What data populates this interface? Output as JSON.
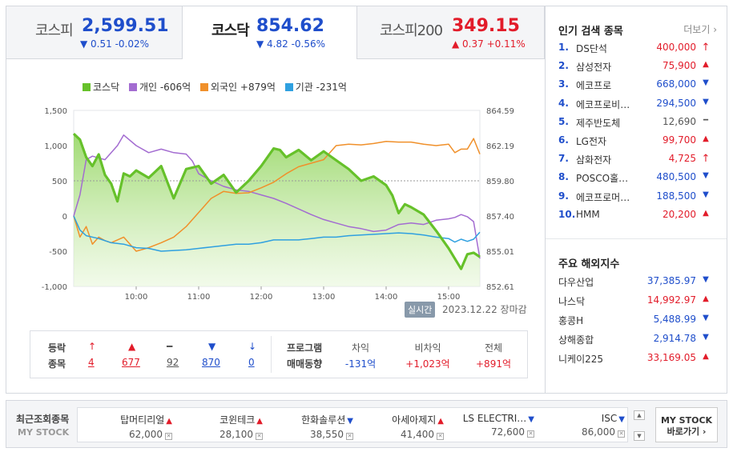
{
  "tabs": [
    {
      "name": "코스피",
      "value": "2,599.51",
      "change": "▼ 0.51 -0.02%",
      "dir": "down"
    },
    {
      "name": "코스닥",
      "value": "854.62",
      "change": "▼ 4.82 -0.56%",
      "dir": "down"
    },
    {
      "name": "코스피200",
      "value": "349.15",
      "change": "▲ 0.37 +0.11%",
      "dir": "up"
    }
  ],
  "legend": [
    {
      "label": "코스닥",
      "color": "#66c12a"
    },
    {
      "label": "개인 -606억",
      "color": "#a36cd1"
    },
    {
      "label": "외국인 +879억",
      "color": "#f0902a"
    },
    {
      "label": "기관 -231억",
      "color": "#2fa0e0"
    }
  ],
  "chart_data": {
    "type": "line",
    "x_ticks": [
      "10:00",
      "11:00",
      "12:00",
      "13:00",
      "14:00",
      "15:00"
    ],
    "y_left_ticks": [
      "1,500",
      "1,000",
      "500",
      "0",
      "-500",
      "-1,000"
    ],
    "y_left_range": [
      -1000,
      1500
    ],
    "y_right_ticks": [
      "864.59",
      "862.19",
      "859.80",
      "857.40",
      "855.01",
      "852.61"
    ],
    "y_right_range": [
      852.61,
      864.59
    ],
    "reference_line": 859.8,
    "x_range": [
      9.0,
      15.5
    ],
    "series": [
      {
        "name": "코스닥",
        "color": "#66c12a",
        "axis": "right",
        "area": true,
        "x": [
          9.0,
          9.1,
          9.2,
          9.3,
          9.4,
          9.5,
          9.6,
          9.7,
          9.8,
          9.9,
          10.0,
          10.2,
          10.4,
          10.6,
          10.8,
          11.0,
          11.2,
          11.4,
          11.6,
          11.8,
          12.0,
          12.2,
          12.3,
          12.4,
          12.6,
          12.8,
          13.0,
          13.2,
          13.4,
          13.6,
          13.8,
          14.0,
          14.1,
          14.2,
          14.3,
          14.4,
          14.6,
          14.8,
          15.0,
          15.2,
          15.3,
          15.4,
          15.5
        ],
        "values": [
          863.0,
          862.6,
          861.4,
          860.8,
          861.6,
          860.2,
          859.6,
          858.4,
          860.3,
          860.1,
          860.5,
          860.0,
          860.8,
          858.6,
          860.6,
          860.8,
          859.6,
          860.2,
          859.0,
          859.8,
          860.8,
          862.0,
          861.9,
          861.4,
          861.9,
          861.2,
          861.8,
          861.2,
          860.6,
          859.8,
          860.1,
          859.5,
          858.8,
          857.6,
          858.2,
          858.0,
          857.5,
          856.4,
          855.2,
          853.8,
          854.8,
          854.9,
          854.62
        ]
      },
      {
        "name": "개인 -606억",
        "color": "#a36cd1",
        "axis": "left",
        "x": [
          9.0,
          9.1,
          9.2,
          9.3,
          9.5,
          9.7,
          9.8,
          10.0,
          10.2,
          10.4,
          10.6,
          10.8,
          10.9,
          11.0,
          11.2,
          11.4,
          11.6,
          11.8,
          12.0,
          12.2,
          12.4,
          12.6,
          12.8,
          13.0,
          13.2,
          13.4,
          13.6,
          13.8,
          14.0,
          14.2,
          14.4,
          14.6,
          14.8,
          15.0,
          15.1,
          15.2,
          15.3,
          15.4,
          15.5
        ],
        "values": [
          0,
          300,
          800,
          850,
          800,
          1000,
          1150,
          1000,
          900,
          950,
          900,
          880,
          780,
          600,
          500,
          420,
          370,
          350,
          300,
          250,
          180,
          100,
          20,
          -50,
          -100,
          -150,
          -180,
          -220,
          -200,
          -120,
          -100,
          -120,
          -60,
          -40,
          -20,
          20,
          -10,
          -80,
          -606
        ]
      },
      {
        "name": "외국인 +879억",
        "color": "#f0902a",
        "axis": "left",
        "x": [
          9.0,
          9.1,
          9.2,
          9.3,
          9.4,
          9.5,
          9.6,
          9.8,
          10.0,
          10.2,
          10.4,
          10.6,
          10.8,
          11.0,
          11.2,
          11.4,
          11.6,
          11.8,
          12.0,
          12.2,
          12.4,
          12.6,
          12.8,
          13.0,
          13.2,
          13.4,
          13.6,
          13.8,
          14.0,
          14.2,
          14.4,
          14.6,
          14.8,
          15.0,
          15.1,
          15.2,
          15.3,
          15.4,
          15.5
        ],
        "values": [
          0,
          -300,
          -150,
          -400,
          -300,
          -350,
          -380,
          -300,
          -500,
          -450,
          -380,
          -300,
          -150,
          50,
          250,
          350,
          320,
          330,
          400,
          480,
          600,
          700,
          750,
          800,
          1000,
          1020,
          1010,
          1030,
          1060,
          1050,
          1050,
          1020,
          1000,
          1020,
          900,
          950,
          950,
          1100,
          879
        ]
      },
      {
        "name": "기관 -231억",
        "color": "#2fa0e0",
        "axis": "left",
        "x": [
          9.0,
          9.1,
          9.2,
          9.4,
          9.6,
          9.8,
          10.0,
          10.2,
          10.4,
          10.6,
          10.8,
          11.0,
          11.2,
          11.4,
          11.6,
          11.8,
          12.0,
          12.2,
          12.4,
          12.6,
          12.8,
          13.0,
          13.2,
          13.4,
          13.6,
          13.8,
          14.0,
          14.2,
          14.4,
          14.6,
          14.8,
          15.0,
          15.1,
          15.2,
          15.3,
          15.4,
          15.5
        ],
        "values": [
          0,
          -200,
          -280,
          -320,
          -380,
          -400,
          -450,
          -460,
          -500,
          -490,
          -480,
          -460,
          -440,
          -420,
          -400,
          -400,
          -380,
          -340,
          -340,
          -340,
          -320,
          -300,
          -300,
          -280,
          -270,
          -260,
          -250,
          -240,
          -250,
          -270,
          -300,
          -320,
          -370,
          -330,
          -360,
          -330,
          -231
        ]
      }
    ]
  },
  "status": {
    "live": "실시간",
    "date": "2023.12.22",
    "market": "장마감"
  },
  "breadth": {
    "label1": "등락",
    "label2": "종목",
    "items": [
      {
        "sym": "↑",
        "count": "4",
        "dir": "up"
      },
      {
        "sym": "▲",
        "count": "677",
        "dir": "up"
      },
      {
        "sym": "━",
        "count": "92",
        "dir": "flat"
      },
      {
        "sym": "▼",
        "count": "870",
        "dir": "down"
      },
      {
        "sym": "↓",
        "count": "0",
        "dir": "down"
      }
    ]
  },
  "program": {
    "label1": "프로그램",
    "label2": "매매동향",
    "items": [
      {
        "head": "차익",
        "val": "-131억",
        "dir": "down"
      },
      {
        "head": "비차익",
        "val": "+1,023억",
        "dir": "up"
      },
      {
        "head": "전체",
        "val": "+891억",
        "dir": "up"
      }
    ]
  },
  "popular": {
    "title": "인기 검색 종목",
    "more": "더보기",
    "items": [
      {
        "no": "1.",
        "name": "DS단석",
        "price": "400,000",
        "arrow": "↑",
        "dir": "up"
      },
      {
        "no": "2.",
        "name": "삼성전자",
        "price": "75,900",
        "arrow": "▲",
        "dir": "up"
      },
      {
        "no": "3.",
        "name": "에코프로",
        "price": "668,000",
        "arrow": "▼",
        "dir": "down"
      },
      {
        "no": "4.",
        "name": "에코프로비…",
        "price": "294,500",
        "arrow": "▼",
        "dir": "down"
      },
      {
        "no": "5.",
        "name": "제주반도체",
        "price": "12,690",
        "arrow": "━",
        "dir": "flat"
      },
      {
        "no": "6.",
        "name": "LG전자",
        "price": "99,700",
        "arrow": "▲",
        "dir": "up"
      },
      {
        "no": "7.",
        "name": "삼화전자",
        "price": "4,725",
        "arrow": "↑",
        "dir": "up"
      },
      {
        "no": "8.",
        "name": "POSCO홀…",
        "price": "480,500",
        "arrow": "▼",
        "dir": "down"
      },
      {
        "no": "9.",
        "name": "에코프로머…",
        "price": "188,500",
        "arrow": "▼",
        "dir": "down"
      },
      {
        "no": "10.",
        "name": "HMM",
        "price": "20,200",
        "arrow": "▲",
        "dir": "up"
      }
    ]
  },
  "world": {
    "title": "주요 해외지수",
    "items": [
      {
        "name": "다우산업",
        "price": "37,385.97",
        "arrow": "▼",
        "dir": "down"
      },
      {
        "name": "나스닥",
        "price": "14,992.97",
        "arrow": "▲",
        "dir": "up"
      },
      {
        "name": "홍콩H",
        "price": "5,488.99",
        "arrow": "▼",
        "dir": "down"
      },
      {
        "name": "상해종합",
        "price": "2,914.78",
        "arrow": "▼",
        "dir": "down"
      },
      {
        "name": "니케이225",
        "price": "33,169.05",
        "arrow": "▲",
        "dir": "up"
      }
    ]
  },
  "mystock": {
    "label": "최근조회종목",
    "sub": "MY STOCK",
    "button_line1": "MY STOCK",
    "button_line2": "바로가기 ›",
    "items": [
      {
        "name": "탑머티리얼",
        "arrow": "▲",
        "dir": "up",
        "price": "62,000"
      },
      {
        "name": "코윈테크",
        "arrow": "▲",
        "dir": "up",
        "price": "28,100"
      },
      {
        "name": "한화솔루션",
        "arrow": "▼",
        "dir": "down",
        "price": "38,550"
      },
      {
        "name": "아세아제지",
        "arrow": "▲",
        "dir": "up",
        "price": "41,400"
      },
      {
        "name": "LS ELECTRI…",
        "arrow": "▼",
        "dir": "down",
        "price": "72,600"
      },
      {
        "name": "ISC",
        "arrow": "▼",
        "dir": "down",
        "price": "86,000"
      }
    ]
  }
}
